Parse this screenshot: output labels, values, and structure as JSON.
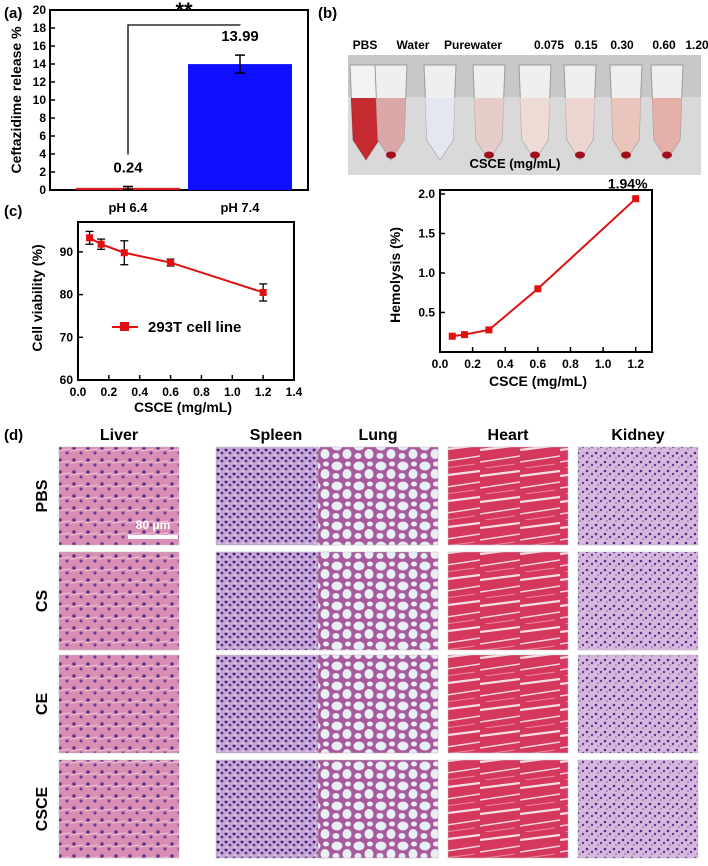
{
  "panel_labels": {
    "a": "(a)",
    "b": "(b)",
    "c": "(c)",
    "d": "(d)"
  },
  "chart_data": [
    {
      "id": "a",
      "type": "bar",
      "categories": [
        "pH 6.4",
        "pH 7.4"
      ],
      "values": [
        0.24,
        13.99
      ],
      "errors": [
        0.15,
        1.0
      ],
      "value_labels": [
        "0.24",
        "13.99"
      ],
      "colors": [
        "#e02020",
        "#0f0fff"
      ],
      "ylabel": "Ceftazidime release %",
      "ylim": [
        0,
        20
      ],
      "yticks": [
        0,
        2,
        4,
        6,
        8,
        10,
        12,
        14,
        16,
        18,
        20
      ],
      "significance": "**"
    },
    {
      "id": "c",
      "type": "line",
      "series": [
        {
          "name": "293T  cell line",
          "color": "#e01010",
          "x": [
            0.075,
            0.15,
            0.3,
            0.6,
            1.2
          ],
          "y": [
            93.3,
            91.8,
            89.8,
            87.5,
            80.5
          ],
          "err": [
            1.5,
            1.2,
            2.8,
            0.8,
            2.0
          ]
        }
      ],
      "xlabel": "CSCE (mg/mL)",
      "ylabel": "Cell viability (%)",
      "xlim": [
        0.0,
        1.4
      ],
      "ylim": [
        60,
        97
      ],
      "xticks": [
        "0.0",
        "0.2",
        "0.4",
        "0.6",
        "0.8",
        "1.0",
        "1.2",
        "1.4"
      ],
      "yticks": [
        60,
        70,
        80,
        90
      ],
      "legend_position": "center"
    },
    {
      "id": "b-plot",
      "type": "line",
      "series": [
        {
          "color": "#e01010",
          "x": [
            0.075,
            0.15,
            0.3,
            0.6,
            1.2
          ],
          "y": [
            0.2,
            0.22,
            0.28,
            0.8,
            1.94
          ]
        }
      ],
      "xlabel": "CSCE (mg/mL)",
      "ylabel": "Hemolysis (%)",
      "xlim": [
        0.0,
        1.3
      ],
      "ylim": [
        0.0,
        2.05
      ],
      "xticks": [
        "0.0",
        "0.2",
        "0.4",
        "0.6",
        "0.8",
        "1.0",
        "1.2"
      ],
      "yticks": [
        "0.5",
        "1.0",
        "1.5",
        "2.0"
      ],
      "annotation": "1.94%"
    }
  ],
  "photo_b": {
    "tube_labels": [
      "PBS",
      "Water",
      "Purewater",
      "0.075",
      "0.15",
      "0.30",
      "0.60",
      "1.20"
    ],
    "axis_label": "CSCE (mg/mL)"
  },
  "histology": {
    "columns": [
      "Liver",
      "Spleen",
      "Lung",
      "Heart",
      "Kidney"
    ],
    "rows": [
      "PBS",
      "CS",
      "CE",
      "CSCE"
    ],
    "scale_bar": "80 μm"
  }
}
